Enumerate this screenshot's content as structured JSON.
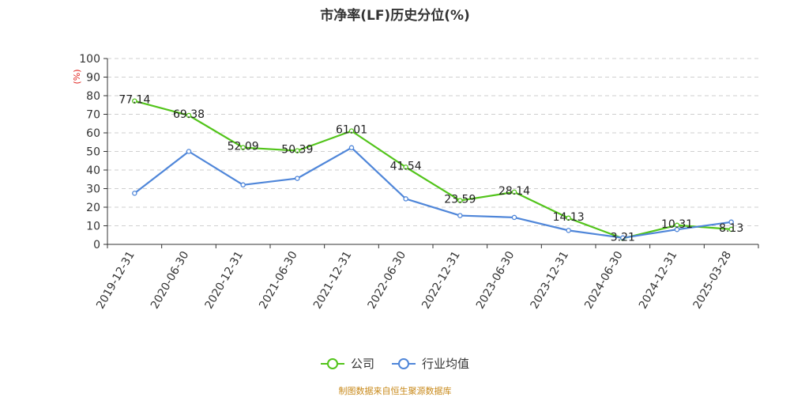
{
  "chart_data": {
    "type": "line",
    "title": "市净率(LF)历史分位(%)",
    "ylabel": "(%)",
    "xlabel": "",
    "ylim": [
      0,
      100
    ],
    "yticks": [
      0,
      10,
      20,
      30,
      40,
      50,
      60,
      70,
      80,
      90,
      100
    ],
    "grid": true,
    "legend_position": "bottom",
    "categories": [
      "2019-12-31",
      "2020-06-30",
      "2020-12-31",
      "2021-06-30",
      "2021-12-31",
      "2022-06-30",
      "2022-12-31",
      "2023-06-30",
      "2023-12-31",
      "2024-06-30",
      "2024-12-31",
      "2025-03-28"
    ],
    "series": [
      {
        "name": "公司",
        "color": "#52c41a",
        "values": [
          77.14,
          69.38,
          52.09,
          50.39,
          61.01,
          41.54,
          23.59,
          28.14,
          14.13,
          3.21,
          10.31,
          8.13
        ],
        "labels": [
          "77.14",
          "69.38",
          "52.09",
          "50.39",
          "61.01",
          "41.54",
          "23.59",
          "28.14",
          "14.13",
          "3.21",
          "10.31",
          "8.13"
        ]
      },
      {
        "name": "行业均值",
        "color": "#4f86d9",
        "values": [
          27.5,
          50,
          32,
          35.5,
          52,
          24.5,
          15.5,
          14.5,
          7.5,
          3.5,
          8,
          12
        ]
      }
    ]
  },
  "footer": {
    "source": "制图数据来自恒生聚源数据库"
  }
}
